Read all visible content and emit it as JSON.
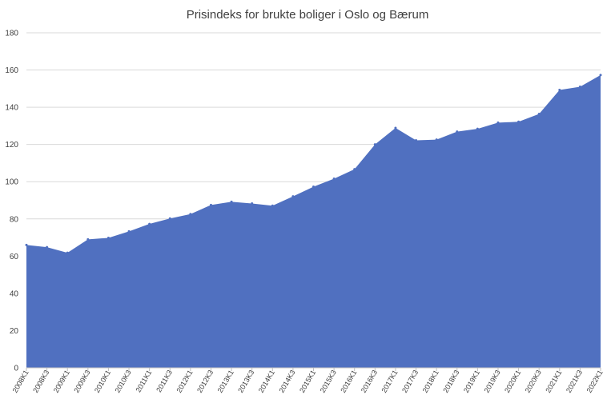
{
  "chart_data": {
    "type": "area",
    "title": "Prisindeks for brukte boliger i Oslo og Bærum",
    "xlabel": "",
    "ylabel": "",
    "ylim": [
      0,
      180
    ],
    "yticks": [
      0,
      20,
      40,
      60,
      80,
      100,
      120,
      140,
      160,
      180
    ],
    "grid": true,
    "legend": "none",
    "color": "#5070c0",
    "categories": [
      "2008K1",
      "2008K3",
      "2009K1",
      "2009K3",
      "2010K1",
      "2010K3",
      "2011K1",
      "2011K3",
      "2012K1",
      "2012K3",
      "2013K1",
      "2013K3",
      "2014K1",
      "2014K3",
      "2015K1",
      "2015K3",
      "2016K1",
      "2016K3",
      "2017K1",
      "2017K3",
      "2018K1",
      "2018K3",
      "2019K1",
      "2019K3",
      "2020K1",
      "2020K3",
      "2021K1",
      "2021K3",
      "2022K1"
    ],
    "values": [
      66,
      64.8,
      61.8,
      69,
      69.8,
      73.3,
      77.3,
      80.2,
      82.6,
      87.5,
      89.2,
      88.3,
      87.1,
      92.1,
      97.3,
      101.6,
      106.7,
      120,
      128.9,
      122.2,
      122.6,
      126.9,
      128.4,
      131.7,
      132.2,
      136.4,
      149.3,
      151,
      157.3
    ]
  }
}
